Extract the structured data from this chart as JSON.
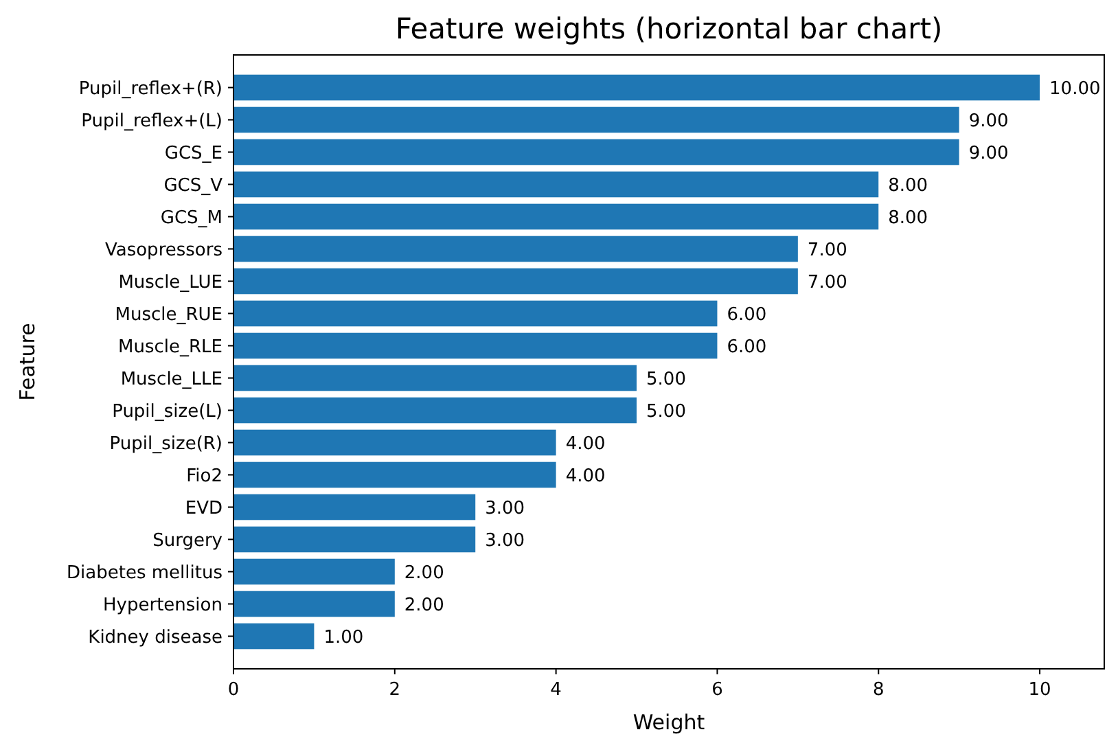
{
  "chart_data": {
    "type": "bar",
    "orientation": "horizontal",
    "title": "Feature weights (horizontal bar chart)",
    "xlabel": "Weight",
    "ylabel": "Feature",
    "categories": [
      "Pupil_reflex+(R)",
      "Pupil_reflex+(L)",
      "GCS_E",
      "GCS_V",
      "GCS_M",
      "Vasopressors",
      "Muscle_LUE",
      "Muscle_RUE",
      "Muscle_RLE",
      "Muscle_LLE",
      "Pupil_size(L)",
      "Pupil_size(R)",
      "Fio2",
      "EVD",
      "Surgery",
      "Diabetes mellitus",
      "Hypertension",
      "Kidney disease"
    ],
    "values": [
      10,
      9,
      9,
      8,
      8,
      7,
      7,
      6,
      6,
      5,
      5,
      4,
      4,
      3,
      3,
      2,
      2,
      1
    ],
    "value_labels": [
      "10.00",
      "9.00",
      "9.00",
      "8.00",
      "8.00",
      "7.00",
      "7.00",
      "6.00",
      "6.00",
      "5.00",
      "5.00",
      "4.00",
      "4.00",
      "3.00",
      "3.00",
      "2.00",
      "2.00",
      "1.00"
    ],
    "color": "#1f77b4",
    "xlim": [
      0,
      10.8
    ],
    "xticks": [
      0,
      2,
      4,
      6,
      8,
      10
    ],
    "grid": false
  }
}
